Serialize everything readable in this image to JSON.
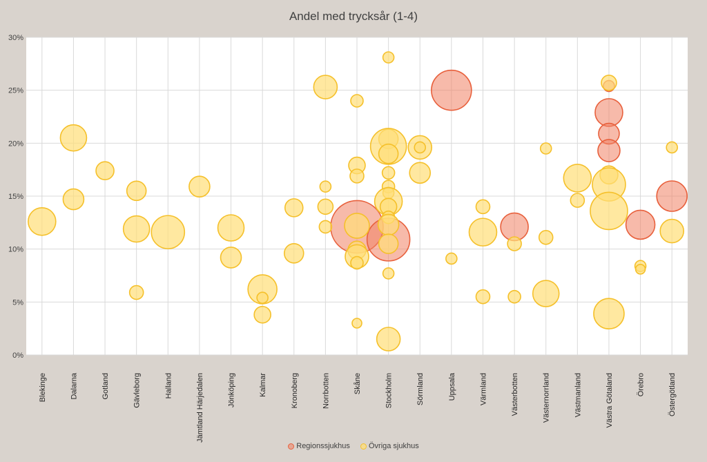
{
  "chart_data": {
    "type": "bubble",
    "title": "Andel med trycksår (1-4)",
    "categories": [
      "Blekinge",
      "Dalarna",
      "Gotland",
      "Gävleborg",
      "Halland",
      "Jämtland Härjedalen",
      "Jönköping",
      "Kalmar",
      "Kronoberg",
      "Norrbotten",
      "Skåne",
      "Stockholm",
      "Sörmland",
      "Uppsala",
      "Värmland",
      "Västerbotten",
      "Västernorrland",
      "Västmanland",
      "Västra Götaland",
      "Örebro",
      "Östergötland"
    ],
    "ylim": [
      0,
      30
    ],
    "yticks": [
      0,
      5,
      10,
      15,
      20,
      25,
      30
    ],
    "ytick_labels": [
      "0%",
      "5%",
      "10%",
      "15%",
      "20%",
      "25%",
      "30%"
    ],
    "grid": true,
    "legend_position": "bottom",
    "series": [
      {
        "name": "Regionssjukhus",
        "color": "#e8603c",
        "fill": "rgba(240,130,100,0.55)",
        "points": [
          {
            "cat": "Skåne",
            "y": 12.1,
            "size": 38
          },
          {
            "cat": "Stockholm",
            "y": 10.9,
            "size": 31
          },
          {
            "cat": "Uppsala",
            "y": 25.0,
            "size": 29
          },
          {
            "cat": "Västerbotten",
            "y": 12.1,
            "size": 20
          },
          {
            "cat": "Västra Götaland",
            "y": 25.4,
            "size": 8
          },
          {
            "cat": "Västra Götaland",
            "y": 22.9,
            "size": 20
          },
          {
            "cat": "Västra Götaland",
            "y": 20.9,
            "size": 15
          },
          {
            "cat": "Västra Götaland",
            "y": 19.3,
            "size": 16
          },
          {
            "cat": "Örebro",
            "y": 12.3,
            "size": 21
          },
          {
            "cat": "Östergötland",
            "y": 15.0,
            "size": 22
          }
        ]
      },
      {
        "name": "Övriga sjukhus",
        "color": "#f5c02a",
        "fill": "rgba(255,222,120,0.7)",
        "points": [
          {
            "cat": "Blekinge",
            "y": 12.6,
            "size": 20
          },
          {
            "cat": "Dalarna",
            "y": 20.5,
            "size": 19
          },
          {
            "cat": "Dalarna",
            "y": 14.7,
            "size": 15
          },
          {
            "cat": "Gotland",
            "y": 17.4,
            "size": 13
          },
          {
            "cat": "Gävleborg",
            "y": 15.5,
            "size": 14
          },
          {
            "cat": "Gävleborg",
            "y": 11.9,
            "size": 19
          },
          {
            "cat": "Gävleborg",
            "y": 5.9,
            "size": 10
          },
          {
            "cat": "Halland",
            "y": 11.6,
            "size": 24
          },
          {
            "cat": "Jämtland Härjedalen",
            "y": 15.9,
            "size": 15
          },
          {
            "cat": "Jönköping",
            "y": 12.0,
            "size": 19
          },
          {
            "cat": "Jönköping",
            "y": 9.2,
            "size": 15
          },
          {
            "cat": "Kalmar",
            "y": 6.2,
            "size": 21
          },
          {
            "cat": "Kalmar",
            "y": 5.4,
            "size": 8
          },
          {
            "cat": "Kalmar",
            "y": 3.8,
            "size": 12
          },
          {
            "cat": "Kronoberg",
            "y": 13.9,
            "size": 13
          },
          {
            "cat": "Kronoberg",
            "y": 9.6,
            "size": 14
          },
          {
            "cat": "Norrbotten",
            "y": 25.3,
            "size": 17
          },
          {
            "cat": "Norrbotten",
            "y": 15.9,
            "size": 8
          },
          {
            "cat": "Norrbotten",
            "y": 14.0,
            "size": 11
          },
          {
            "cat": "Norrbotten",
            "y": 12.1,
            "size": 9
          },
          {
            "cat": "Skåne",
            "y": 24.0,
            "size": 9
          },
          {
            "cat": "Skåne",
            "y": 17.9,
            "size": 12
          },
          {
            "cat": "Skåne",
            "y": 16.9,
            "size": 10
          },
          {
            "cat": "Skåne",
            "y": 12.2,
            "size": 18
          },
          {
            "cat": "Skåne",
            "y": 9.9,
            "size": 13
          },
          {
            "cat": "Skåne",
            "y": 9.3,
            "size": 17
          },
          {
            "cat": "Skåne",
            "y": 8.7,
            "size": 9
          },
          {
            "cat": "Skåne",
            "y": 3.0,
            "size": 7
          },
          {
            "cat": "Stockholm",
            "y": 28.1,
            "size": 8
          },
          {
            "cat": "Stockholm",
            "y": 20.4,
            "size": 14
          },
          {
            "cat": "Stockholm",
            "y": 19.7,
            "size": 26
          },
          {
            "cat": "Stockholm",
            "y": 19.0,
            "size": 14
          },
          {
            "cat": "Stockholm",
            "y": 17.2,
            "size": 9
          },
          {
            "cat": "Stockholm",
            "y": 15.9,
            "size": 9
          },
          {
            "cat": "Stockholm",
            "y": 15.3,
            "size": 8
          },
          {
            "cat": "Stockholm",
            "y": 14.5,
            "size": 20
          },
          {
            "cat": "Stockholm",
            "y": 14.0,
            "size": 12
          },
          {
            "cat": "Stockholm",
            "y": 13.0,
            "size": 9
          },
          {
            "cat": "Stockholm",
            "y": 12.3,
            "size": 15
          },
          {
            "cat": "Stockholm",
            "y": 10.5,
            "size": 14
          },
          {
            "cat": "Stockholm",
            "y": 7.7,
            "size": 8
          },
          {
            "cat": "Stockholm",
            "y": 1.5,
            "size": 17
          },
          {
            "cat": "Sörmland",
            "y": 19.6,
            "size": 17
          },
          {
            "cat": "Sörmland",
            "y": 19.6,
            "size": 8
          },
          {
            "cat": "Sörmland",
            "y": 17.2,
            "size": 15
          },
          {
            "cat": "Uppsala",
            "y": 9.1,
            "size": 8
          },
          {
            "cat": "Värmland",
            "y": 14.0,
            "size": 10
          },
          {
            "cat": "Värmland",
            "y": 11.6,
            "size": 20
          },
          {
            "cat": "Värmland",
            "y": 5.5,
            "size": 10
          },
          {
            "cat": "Västerbotten",
            "y": 10.5,
            "size": 10
          },
          {
            "cat": "Västerbotten",
            "y": 5.5,
            "size": 9
          },
          {
            "cat": "Västernorrland",
            "y": 19.5,
            "size": 8
          },
          {
            "cat": "Västernorrland",
            "y": 11.1,
            "size": 10
          },
          {
            "cat": "Västernorrland",
            "y": 5.8,
            "size": 19
          },
          {
            "cat": "Västmanland",
            "y": 16.7,
            "size": 20
          },
          {
            "cat": "Västmanland",
            "y": 14.6,
            "size": 10
          },
          {
            "cat": "Västra Götaland",
            "y": 25.7,
            "size": 11
          },
          {
            "cat": "Västra Götaland",
            "y": 17.0,
            "size": 13
          },
          {
            "cat": "Västra Götaland",
            "y": 16.1,
            "size": 24
          },
          {
            "cat": "Västra Götaland",
            "y": 13.6,
            "size": 27
          },
          {
            "cat": "Västra Götaland",
            "y": 3.9,
            "size": 22
          },
          {
            "cat": "Örebro",
            "y": 8.4,
            "size": 8
          },
          {
            "cat": "Örebro",
            "y": 8.1,
            "size": 7
          },
          {
            "cat": "Östergötland",
            "y": 19.6,
            "size": 8
          },
          {
            "cat": "Östergötland",
            "y": 11.7,
            "size": 17
          }
        ]
      }
    ]
  }
}
